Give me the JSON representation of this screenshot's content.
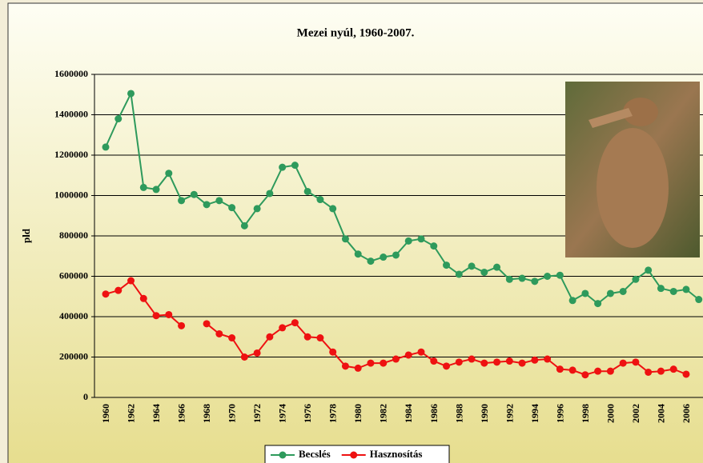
{
  "chart_data": {
    "type": "line",
    "title": "Mezei nyúl, 1960-2007.",
    "y_label": "pld",
    "categories": [
      "1960",
      null,
      "1962",
      null,
      "1964",
      null,
      "1966",
      null,
      "1968",
      null,
      "1970",
      null,
      "1972",
      null,
      "1974",
      null,
      "1976",
      null,
      "1978",
      null,
      "1980",
      null,
      "1982",
      null,
      "1984",
      null,
      "1986",
      null,
      "1988",
      null,
      "1990",
      null,
      "1992",
      null,
      "1994",
      null,
      "1996",
      null,
      "1998",
      null,
      "2000",
      null,
      "2002",
      null,
      "2004",
      null,
      "2006",
      null
    ],
    "series": [
      {
        "name": "Becslés",
        "color": "#2e9a5c",
        "values": [
          1240000,
          1380000,
          1505000,
          1040000,
          1030000,
          1110000,
          975000,
          1005000,
          955000,
          975000,
          940000,
          850000,
          935000,
          1010000,
          1140000,
          1150000,
          1020000,
          980000,
          935000,
          785000,
          710000,
          675000,
          695000,
          705000,
          775000,
          785000,
          750000,
          655000,
          610000,
          650000,
          620000,
          645000,
          585000,
          590000,
          575000,
          600000,
          605000,
          480000,
          515000,
          465000,
          515000,
          525000,
          585000,
          630000,
          540000,
          525000,
          535000,
          485000
        ]
      },
      {
        "name": "Hasznosítás",
        "color": "#ee1111",
        "values": [
          512000,
          530000,
          578000,
          490000,
          405000,
          410000,
          355000,
          null,
          365000,
          315000,
          295000,
          200000,
          220000,
          300000,
          345000,
          370000,
          300000,
          295000,
          225000,
          155000,
          145000,
          170000,
          170000,
          190000,
          210000,
          225000,
          180000,
          155000,
          175000,
          190000,
          170000,
          175000,
          180000,
          170000,
          185000,
          190000,
          140000,
          135000,
          112000,
          130000,
          130000,
          170000,
          175000,
          125000,
          130000,
          140000,
          115000,
          null
        ]
      }
    ],
    "ylim": [
      0,
      1600000
    ],
    "yticks": [
      0,
      200000,
      400000,
      600000,
      800000,
      1000000,
      1200000,
      1400000,
      1600000
    ],
    "grid": true,
    "legend": "bottom"
  }
}
